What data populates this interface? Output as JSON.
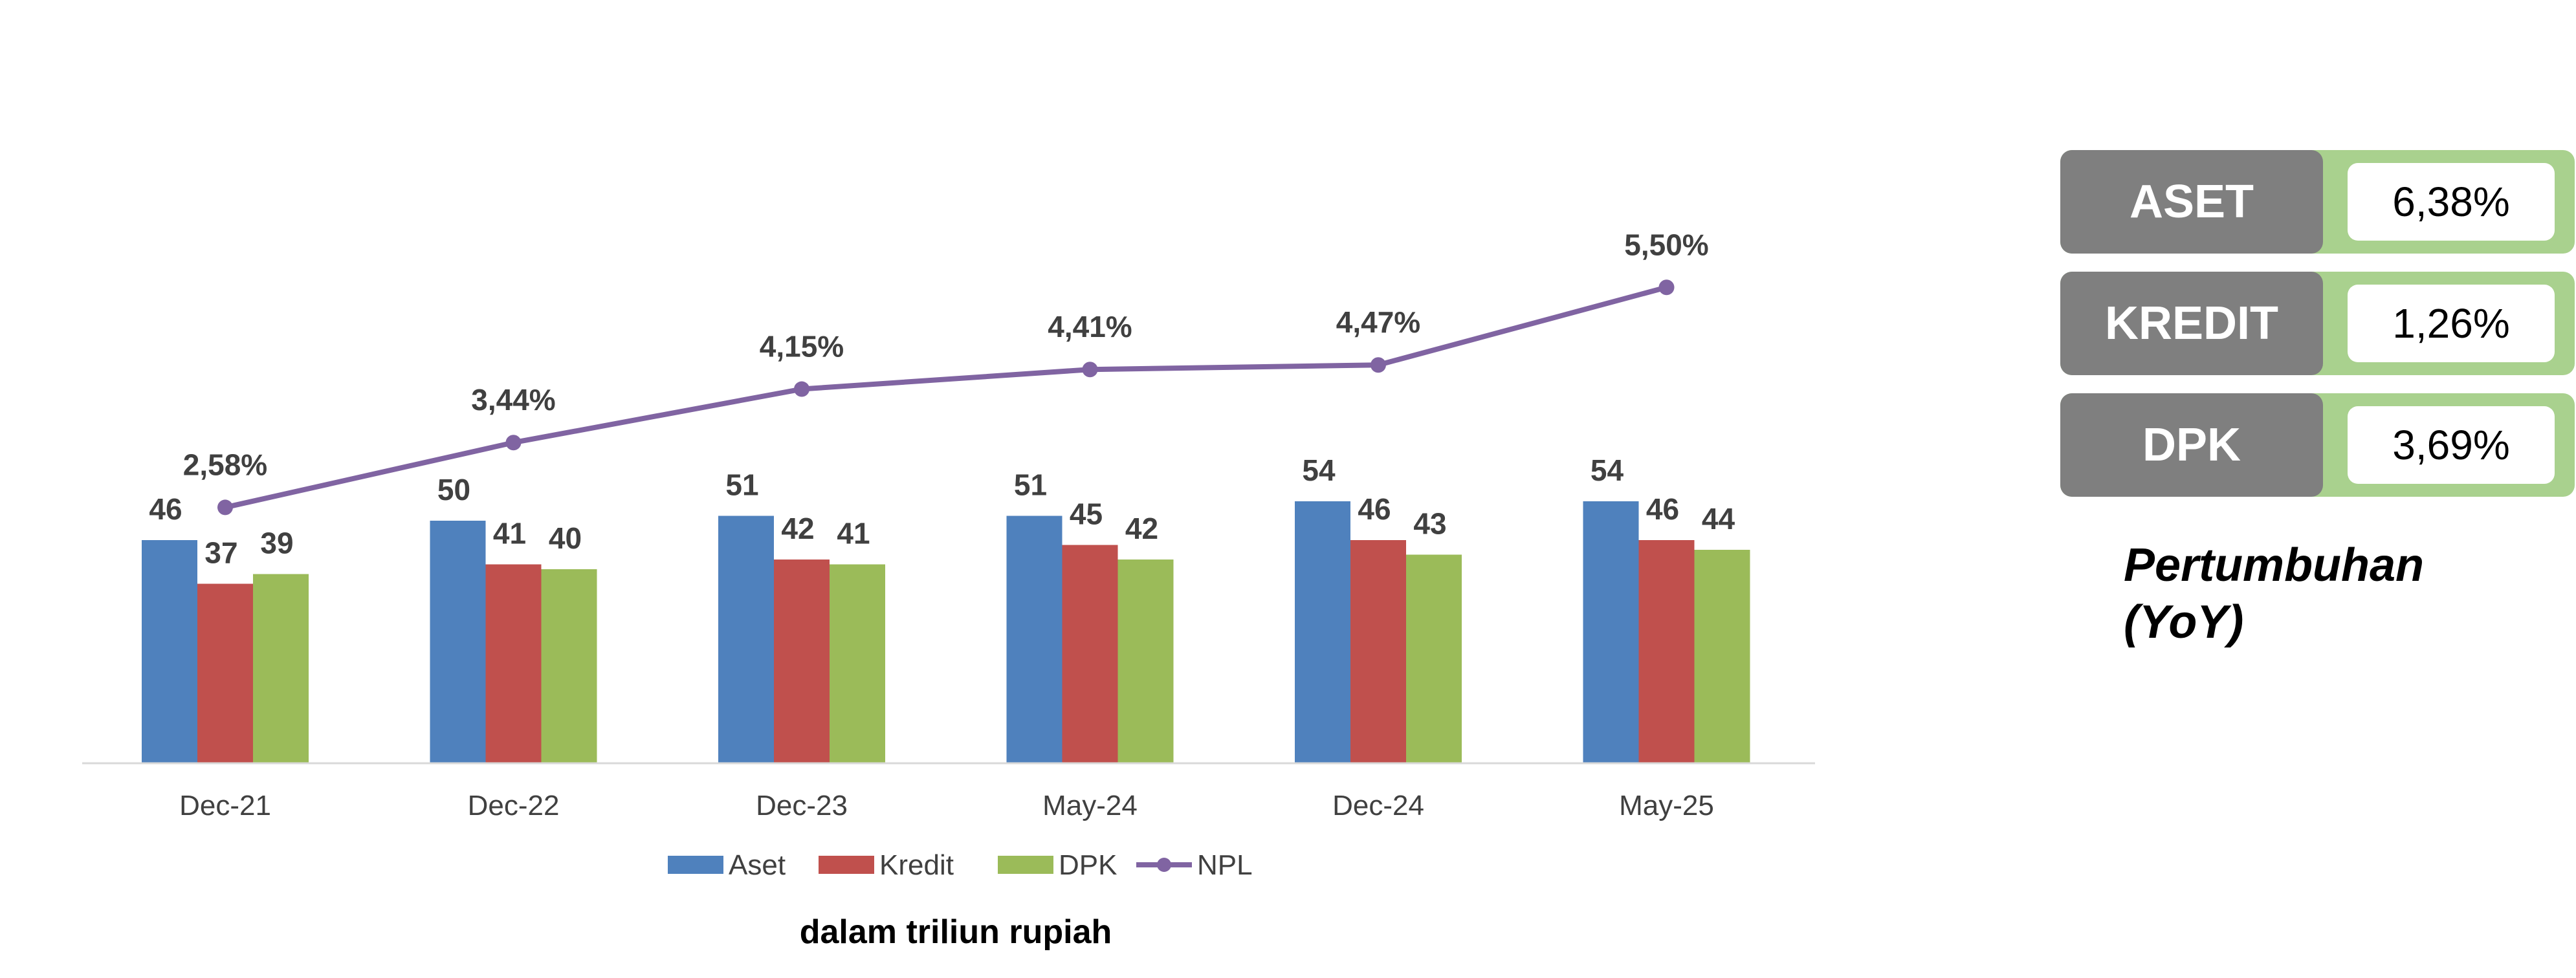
{
  "chart_data": {
    "type": "bar",
    "categories": [
      "Dec-21",
      "Dec-22",
      "Dec-23",
      "May-24",
      "Dec-24",
      "May-25"
    ],
    "series": [
      {
        "name": "Aset",
        "type": "bar",
        "color": "#4f81bd",
        "values": [
          46,
          50,
          51,
          51,
          54,
          54
        ]
      },
      {
        "name": "Kredit",
        "type": "bar",
        "color": "#c0504d",
        "values": [
          37,
          41,
          42,
          45,
          46,
          46
        ]
      },
      {
        "name": "DPK",
        "type": "bar",
        "color": "#9bbb59",
        "values": [
          39,
          40,
          41,
          42,
          43,
          44
        ]
      },
      {
        "name": "NPL",
        "type": "line",
        "color": "#8064a2",
        "values": [
          2.58,
          3.44,
          4.15,
          4.41,
          4.47,
          5.5
        ],
        "labels": [
          "2,58%",
          "3,44%",
          "4,15%",
          "4,41%",
          "4,47%",
          "5,50%"
        ]
      }
    ],
    "caption": "dalam triliun rupiah",
    "legend_position": "bottom",
    "grid": false
  },
  "growth": {
    "title_line1": "Pertumbuhan",
    "title_line2": "(YoY)",
    "items": [
      {
        "label": "ASET",
        "value": "6,38%"
      },
      {
        "label": "KREDIT",
        "value": "1,26%"
      },
      {
        "label": "DPK",
        "value": "3,69%"
      }
    ],
    "colors": {
      "label_bg": "#7f7f7f",
      "frame": "#a9d18e"
    }
  }
}
